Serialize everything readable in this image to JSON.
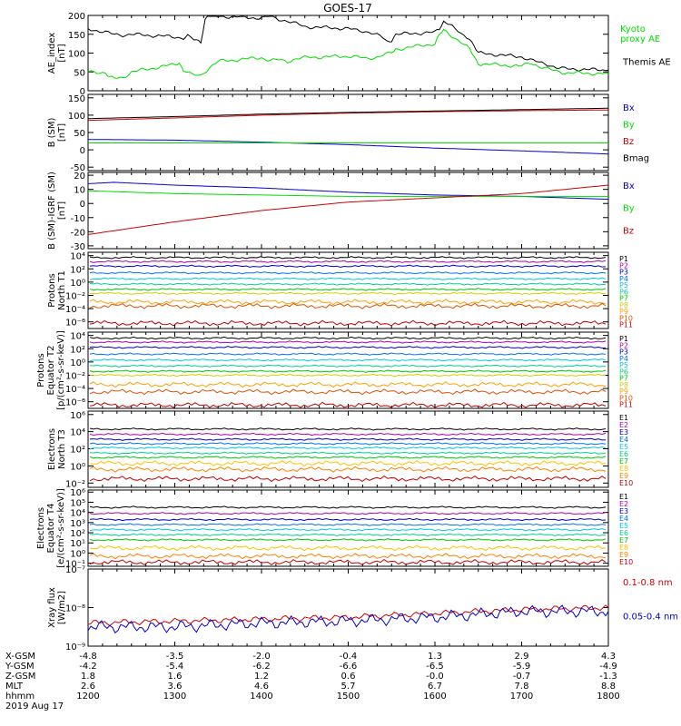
{
  "title": "GOES-17",
  "colors": {
    "black": "#000000",
    "red": "#cc0000",
    "green": "#00dd00",
    "blue": "#0000cc",
    "channels11": [
      "#000000",
      "#b000b0",
      "#0000cc",
      "#0070ff",
      "#00c8e0",
      "#00d090",
      "#00c800",
      "#d0d000",
      "#ffa000",
      "#e05000",
      "#c00000"
    ],
    "channels10": [
      "#000000",
      "#b000b0",
      "#0000cc",
      "#0070ff",
      "#00c8e0",
      "#00d090",
      "#00c800",
      "#ffc000",
      "#ff8000",
      "#c00000"
    ]
  },
  "chart_data": [
    {
      "id": "ae",
      "type": "line",
      "ylabel": [
        "AE_index",
        "[nT]"
      ],
      "ylim": [
        0,
        200
      ],
      "yticks": [
        0,
        50,
        100,
        150,
        200
      ],
      "ytick_labels": [
        "0",
        "50",
        "100",
        "150",
        "200"
      ],
      "legend": [
        {
          "label": [
            "Kyoto",
            "proxy AE"
          ],
          "color": "#00dd00"
        },
        {
          "label": [
            "Themis AE"
          ],
          "color": "#000000"
        }
      ],
      "series": [
        {
          "name": "Themis AE",
          "color": "#000000",
          "x": [
            1200,
            1210,
            1220,
            1230,
            1240,
            1250,
            1300,
            1310,
            1315,
            1322,
            1330,
            1335,
            1340,
            1345,
            1350,
            1400,
            1410,
            1420,
            1430,
            1440,
            1450,
            1500,
            1510,
            1520,
            1530,
            1540,
            1545,
            1550,
            1555,
            1600,
            1605,
            1610,
            1615,
            1620,
            1630,
            1640,
            1645,
            1650,
            1700,
            1710,
            1720,
            1730,
            1740,
            1750,
            1800
          ],
          "y": [
            165,
            160,
            155,
            150,
            148,
            150,
            143,
            140,
            145,
            135,
            130,
            190,
            205,
            200,
            198,
            193,
            198,
            190,
            185,
            178,
            170,
            165,
            160,
            158,
            152,
            140,
            130,
            135,
            150,
            155,
            165,
            185,
            180,
            170,
            150,
            140,
            120,
            100,
            90,
            82,
            75,
            70,
            62,
            58,
            55
          ]
        },
        {
          "name": "Kyoto proxy AE",
          "color": "#00dd00",
          "x": [
            1200,
            1210,
            1220,
            1225,
            1230,
            1240,
            1250,
            1300,
            1305,
            1310,
            1320,
            1330,
            1340,
            1350,
            1400,
            1410,
            1420,
            1430,
            1440,
            1450,
            1500,
            1510,
            1520,
            1530,
            1540,
            1550,
            1555,
            1600,
            1605,
            1610,
            1620,
            1630,
            1640,
            1645,
            1650,
            1700,
            1710,
            1720,
            1730,
            1740,
            1750,
            1800
          ],
          "y": [
            50,
            50,
            48,
            35,
            33,
            35,
            50,
            70,
            75,
            55,
            42,
            40,
            62,
            78,
            88,
            80,
            82,
            78,
            85,
            88,
            92,
            90,
            85,
            88,
            95,
            100,
            110,
            125,
            148,
            160,
            145,
            130,
            110,
            90,
            72,
            65,
            75,
            65,
            58,
            52,
            48,
            45
          ]
        }
      ]
    },
    {
      "id": "bsm",
      "type": "line",
      "ylabel": [
        "B (SM)",
        "[nT]"
      ],
      "ylim": [
        -60,
        160
      ],
      "yticks": [
        -50,
        0,
        50,
        100,
        150
      ],
      "ytick_labels": [
        "-50",
        "0",
        "50",
        "100",
        "150"
      ],
      "legend": [
        {
          "label": [
            "Bx"
          ],
          "color": "#0000cc"
        },
        {
          "label": [
            "By"
          ],
          "color": "#00dd00"
        },
        {
          "label": [
            "Bz"
          ],
          "color": "#cc0000"
        },
        {
          "label": [
            "Bmag"
          ],
          "color": "#000000"
        }
      ],
      "series": [
        {
          "name": "Bx",
          "color": "#0000cc",
          "x": [
            1200,
            1300,
            1400,
            1500,
            1600,
            1700,
            1800
          ],
          "y": [
            30,
            28,
            22,
            15,
            5,
            -3,
            -12
          ]
        },
        {
          "name": "By",
          "color": "#00dd00",
          "x": [
            1200,
            1300,
            1400,
            1500,
            1600,
            1700,
            1800
          ],
          "y": [
            20,
            20,
            20,
            20,
            20,
            20,
            20
          ]
        },
        {
          "name": "Bz",
          "color": "#cc0000",
          "x": [
            1200,
            1300,
            1400,
            1500,
            1600,
            1700,
            1800
          ],
          "y": [
            85,
            92,
            100,
            106,
            110,
            113,
            115
          ]
        },
        {
          "name": "Bmag",
          "color": "#000000",
          "x": [
            1200,
            1300,
            1400,
            1500,
            1600,
            1700,
            1800
          ],
          "y": [
            90,
            96,
            103,
            108,
            112,
            116,
            120
          ]
        }
      ]
    },
    {
      "id": "digrf",
      "type": "line",
      "ylabel": [
        "B (SM)-IGRF (SM)",
        "[nT]"
      ],
      "ylim": [
        -32,
        22
      ],
      "yticks": [
        -30,
        -20,
        -10,
        0,
        10,
        20
      ],
      "ytick_labels": [
        "-30",
        "-20",
        "-10",
        "0",
        "10",
        "20"
      ],
      "legend": [
        {
          "label": [
            "Bx"
          ],
          "color": "#0000cc"
        },
        {
          "label": [
            "By"
          ],
          "color": "#00dd00"
        },
        {
          "label": [
            "Bz"
          ],
          "color": "#cc0000"
        }
      ],
      "series": [
        {
          "name": "Bx",
          "color": "#0000cc",
          "x": [
            1200,
            1230,
            1300,
            1400,
            1500,
            1600,
            1700,
            1800
          ],
          "y": [
            14,
            15,
            13,
            11,
            8,
            6,
            5,
            3
          ]
        },
        {
          "name": "By",
          "color": "#00dd00",
          "x": [
            1200,
            1300,
            1400,
            1500,
            1600,
            1700,
            1800
          ],
          "y": [
            9,
            7,
            6,
            5,
            5,
            5,
            5
          ]
        },
        {
          "name": "Bz",
          "color": "#cc0000",
          "x": [
            1200,
            1300,
            1400,
            1500,
            1600,
            1700,
            1800
          ],
          "y": [
            -22,
            -13,
            -5,
            1,
            4,
            7,
            13
          ]
        }
      ]
    },
    {
      "id": "protons_t1",
      "type": "line",
      "log": true,
      "ylabel": [
        "Protons",
        "North T1"
      ],
      "ylim_exp": [
        -7,
        4.5
      ],
      "yticks_exp": [
        -6,
        -4,
        -2,
        0,
        2,
        4
      ],
      "channel_labels": [
        "P1",
        "P2",
        "P3",
        "P4",
        "P5",
        "P6",
        "P7",
        "P8",
        "P9",
        "P10",
        "P11"
      ],
      "levels_exp": [
        3.7,
        3.1,
        2.4,
        1.4,
        0.5,
        -0.3,
        -1.1,
        -1.7,
        -3.0,
        -3.6,
        -6.2
      ]
    },
    {
      "id": "protons_t2",
      "type": "line",
      "log": true,
      "ylabel": [
        "Protons",
        "Equator T2",
        "[p/(cm²-s-sr-keV)]"
      ],
      "ylim_exp": [
        -7,
        4.5
      ],
      "yticks_exp": [
        -6,
        -4,
        -2,
        0,
        2,
        4
      ],
      "channel_labels": [
        "P1",
        "P2",
        "P3",
        "P4",
        "P5",
        "P6",
        "P7",
        "P8",
        "P9",
        "P10",
        "P11"
      ],
      "levels_exp": [
        3.6,
        3.0,
        2.2,
        1.2,
        0.3,
        -0.6,
        -1.4,
        -2.0,
        -3.4,
        -4.5,
        -6.5
      ]
    },
    {
      "id": "electrons_t3",
      "type": "line",
      "log": true,
      "ylabel": [
        "Electrons",
        "North T3"
      ],
      "ylim_exp": [
        -2.5,
        6.4
      ],
      "yticks_exp": [
        -2,
        0,
        2,
        4,
        6
      ],
      "channel_labels": [
        "E1",
        "E2",
        "E3",
        "E4",
        "E5",
        "E6",
        "E7",
        "E8",
        "E9",
        "E10"
      ],
      "levels_exp": [
        4.3,
        3.7,
        3.1,
        2.6,
        2.1,
        1.5,
        1.0,
        0.3,
        -0.4,
        -1.5
      ]
    },
    {
      "id": "electrons_t4",
      "type": "line",
      "log": true,
      "ylabel": [
        "Electrons",
        "Equator T4",
        "[e/(cm²-s-sr-keV)]"
      ],
      "ylim_exp": [
        -1.3,
        6.2
      ],
      "yticks_exp": [
        -1,
        0,
        1,
        2,
        3,
        4,
        5,
        6
      ],
      "channel_labels": [
        "E1",
        "E2",
        "E3",
        "E4",
        "E5",
        "E6",
        "E7",
        "E8",
        "E9",
        "E10"
      ],
      "levels_exp": [
        4.5,
        3.9,
        3.3,
        2.8,
        2.3,
        1.8,
        1.3,
        0.5,
        -0.3,
        -0.9
      ]
    },
    {
      "id": "xray",
      "type": "line",
      "log": true,
      "ylabel": [
        "Xray flux",
        "[W/m2]"
      ],
      "ylim_exp": [
        -9,
        -7
      ],
      "yticks_exp": [
        -9,
        -8,
        -7
      ],
      "legend": [
        {
          "label": [
            "0.1-0.8 nm"
          ],
          "color": "#cc0000"
        },
        {
          "label": [
            "0.05-0.4 nm"
          ],
          "color": "#0000cc"
        }
      ],
      "series": [
        {
          "name": "0.1-0.8 nm",
          "color": "#cc0000",
          "x": [
            1200,
            1300,
            1400,
            1500,
            1600,
            1700,
            1800
          ],
          "y_exp": [
            -8.4,
            -8.35,
            -8.3,
            -8.25,
            -8.15,
            -8.05,
            -8.0
          ]
        },
        {
          "name": "0.05-0.4 nm",
          "color": "#0000cc",
          "x": [
            1200,
            1300,
            1400,
            1500,
            1600,
            1700,
            1800
          ],
          "y_exp": [
            -8.5,
            -8.5,
            -8.4,
            -8.35,
            -8.25,
            -8.1,
            -8.1
          ]
        }
      ]
    }
  ],
  "xaxis": {
    "xlim": [
      1200,
      1800
    ],
    "tick_positions": [
      1200,
      1300,
      1400,
      1500,
      1600,
      1700,
      1800
    ],
    "row_labels": [
      "X-GSM",
      "Y-GSM",
      "Z-GSM",
      "MLT",
      "hhmm"
    ],
    "rows": [
      [
        "-4.8",
        "-3.5",
        "-2.0",
        "-0.4",
        "1.3",
        "2.9",
        "4.3"
      ],
      [
        "-4.2",
        "-5.4",
        "-6.2",
        "-6.6",
        "-6.5",
        "-5.9",
        "-4.9"
      ],
      [
        "1.8",
        "1.6",
        "1.2",
        "0.6",
        "-0.0",
        "-0.7",
        "-1.3"
      ],
      [
        "2.6",
        "3.6",
        "4.6",
        "5.7",
        "6.7",
        "7.8",
        "8.8"
      ],
      [
        "1200",
        "1300",
        "1400",
        "1500",
        "1600",
        "1700",
        "1800"
      ]
    ],
    "date": "2019 Aug 17"
  }
}
